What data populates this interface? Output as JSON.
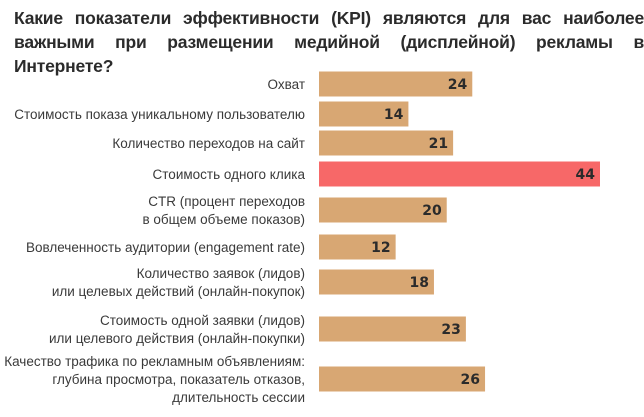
{
  "chart_data": {
    "type": "bar",
    "orientation": "horizontal",
    "title_lines": [
      "Какие показатели эффективности (KPI) являются для вас наиболее",
      "важными при размещении медийной (дисплейной) рекламы в Интернете?"
    ],
    "categories": [
      [
        "Охват"
      ],
      [
        "Стоимость показа уникальному пользователю"
      ],
      [
        "Количество переходов на сайт"
      ],
      [
        "Стоимость одного клика"
      ],
      [
        "CTR (процент переходов",
        "в общем объеме показов)"
      ],
      [
        "Вовлеченность аудитории (engagement rate)"
      ],
      [
        "Количество заявок (лидов)",
        "или целевых действий (онлайн-покупок)"
      ],
      [
        "Стоимость одной заявки (лидов)",
        "или целевого действия (онлайн-покупки)"
      ],
      [
        "Качество трафика по рекламным объявлениям:",
        "глубина просмотра, показатель отказов,",
        "длительность сессии"
      ]
    ],
    "values": [
      24,
      14,
      21,
      44,
      20,
      12,
      18,
      23,
      26
    ],
    "highlight_index": 3,
    "xlim": [
      0,
      44
    ],
    "grid": false,
    "colors": {
      "bar": "#d8a773",
      "highlight": "#f76868",
      "text": "#2b2b2b"
    }
  }
}
